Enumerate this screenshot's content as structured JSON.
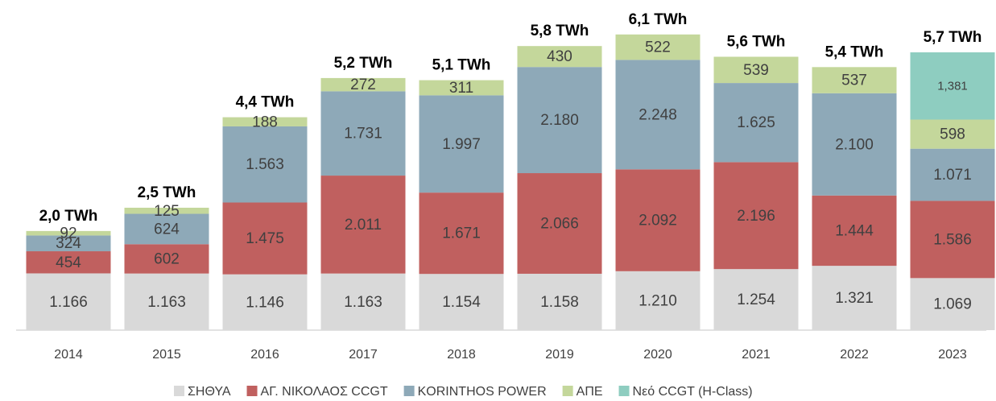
{
  "chart_data": {
    "type": "bar",
    "stacked": true,
    "categories": [
      "2014",
      "2015",
      "2016",
      "2017",
      "2018",
      "2019",
      "2020",
      "2021",
      "2022",
      "2023"
    ],
    "series": [
      {
        "name": "ΣΗΘΥΑ",
        "color": "#d9d9d9",
        "values": [
          1166,
          1163,
          1146,
          1163,
          1154,
          1158,
          1210,
          1254,
          1321,
          1069
        ],
        "value_labels": [
          "1.166",
          "1.163",
          "1.146",
          "1.163",
          "1.154",
          "1.158",
          "1.210",
          "1.254",
          "1.321",
          "1.069"
        ]
      },
      {
        "name": "ΑΓ. ΝΙΚΟΛΑΟΣ CCGT",
        "color": "#c0605f",
        "values": [
          454,
          602,
          1475,
          2011,
          1671,
          2066,
          2092,
          2196,
          1444,
          1586
        ],
        "value_labels": [
          "454",
          "602",
          "1.475",
          "2.011",
          "1.671",
          "2.066",
          "2.092",
          "2.196",
          "1.444",
          "1.586"
        ]
      },
      {
        "name": "KORINTHOS POWER",
        "color": "#8ea9b8",
        "values": [
          324,
          624,
          1563,
          1731,
          1997,
          2180,
          2248,
          1625,
          2100,
          1071
        ],
        "value_labels": [
          "324",
          "624",
          "1.563",
          "1.731",
          "1.997",
          "2.180",
          "2.248",
          "1.625",
          "2.100",
          "1.071"
        ]
      },
      {
        "name": "ΑΠΕ",
        "color": "#c4d79b",
        "values": [
          92,
          125,
          188,
          272,
          311,
          430,
          522,
          539,
          537,
          598
        ],
        "value_labels": [
          "92",
          "125",
          "188",
          "272",
          "311",
          "430",
          "522",
          "539",
          "537",
          "598"
        ]
      },
      {
        "name": "Νεό CCGT (H-Class)",
        "color": "#8ecdc0",
        "values": [
          null,
          null,
          null,
          null,
          null,
          null,
          null,
          null,
          null,
          1381
        ],
        "value_labels": [
          null,
          null,
          null,
          null,
          null,
          null,
          null,
          null,
          null,
          "1,381"
        ]
      }
    ],
    "annotations": [
      "2,0 TWh",
      "2,5 TWh",
      "4,4 TWh",
      "5,2 TWh",
      "5,1 TWh",
      "5,8 TWh",
      "6,1 TWh",
      "5,6 TWh",
      "5,4 TWh",
      "5,7 TWh"
    ],
    "ylim": [
      0,
      6300
    ],
    "legend": "bottom"
  }
}
